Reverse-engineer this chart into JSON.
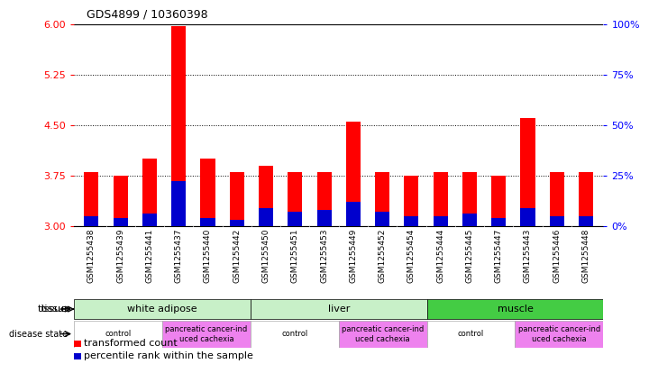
{
  "title": "GDS4899 / 10360398",
  "samples": [
    "GSM1255438",
    "GSM1255439",
    "GSM1255441",
    "GSM1255437",
    "GSM1255440",
    "GSM1255442",
    "GSM1255450",
    "GSM1255451",
    "GSM1255453",
    "GSM1255449",
    "GSM1255452",
    "GSM1255454",
    "GSM1255444",
    "GSM1255445",
    "GSM1255447",
    "GSM1255443",
    "GSM1255446",
    "GSM1255448"
  ],
  "transformed_counts": [
    3.8,
    3.75,
    4.0,
    5.97,
    4.0,
    3.8,
    3.9,
    3.8,
    3.8,
    4.55,
    3.8,
    3.75,
    3.8,
    3.8,
    3.75,
    4.6,
    3.8,
    3.8
  ],
  "percentile_ranks": [
    5,
    4,
    6,
    22,
    4,
    3,
    9,
    7,
    8,
    12,
    7,
    5,
    5,
    6,
    4,
    9,
    5,
    5
  ],
  "ylim_left": [
    3.0,
    6.0
  ],
  "ylim_right": [
    0,
    100
  ],
  "yticks_left": [
    3.0,
    3.75,
    4.5,
    5.25,
    6.0
  ],
  "yticks_right": [
    0,
    25,
    50,
    75,
    100
  ],
  "bar_color_red": "#ff0000",
  "bar_color_blue": "#0000cd",
  "tissue_groups": [
    {
      "label": "white adipose",
      "start": 0,
      "end": 6,
      "color": "#c8f0c8"
    },
    {
      "label": "liver",
      "start": 6,
      "end": 12,
      "color": "#c8f0c8"
    },
    {
      "label": "muscle",
      "start": 12,
      "end": 18,
      "color": "#44cc44"
    }
  ],
  "disease_groups": [
    {
      "label": "control",
      "start": 0,
      "end": 3,
      "color": "#ffffff"
    },
    {
      "label": "pancreatic cancer-ind\nuced cachexia",
      "start": 3,
      "end": 6,
      "color": "#ee82ee"
    },
    {
      "label": "control",
      "start": 6,
      "end": 9,
      "color": "#ffffff"
    },
    {
      "label": "pancreatic cancer-ind\nuced cachexia",
      "start": 9,
      "end": 12,
      "color": "#ee82ee"
    },
    {
      "label": "control",
      "start": 12,
      "end": 15,
      "color": "#ffffff"
    },
    {
      "label": "pancreatic cancer-ind\nuced cachexia",
      "start": 15,
      "end": 18,
      "color": "#ee82ee"
    }
  ],
  "legend_items": [
    {
      "label": "transformed count",
      "color": "#ff0000"
    },
    {
      "label": "percentile rank within the sample",
      "color": "#0000cd"
    }
  ],
  "background_color": "#ffffff",
  "plot_bg_color": "#ffffff",
  "sample_label_bg": "#d8d8d8"
}
